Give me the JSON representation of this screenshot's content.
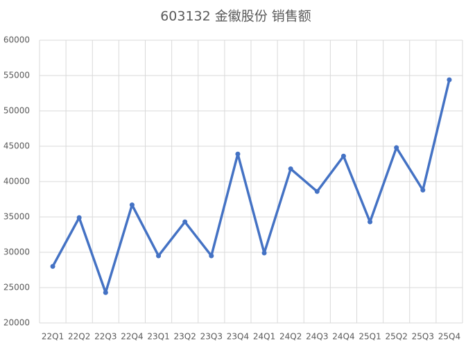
{
  "chart_data": {
    "type": "line",
    "title": "603132 金徽股份 销售额",
    "categories": [
      "22Q1",
      "22Q2",
      "22Q3",
      "22Q4",
      "23Q1",
      "23Q2",
      "23Q3",
      "23Q4",
      "24Q1",
      "24Q2",
      "24Q3",
      "24Q4",
      "25Q1",
      "25Q2",
      "25Q3",
      "25Q4"
    ],
    "series": [
      {
        "name": "销售额",
        "color": "#4472c4",
        "values": [
          28000,
          34900,
          24300,
          36700,
          29500,
          34300,
          29500,
          43900,
          29900,
          41800,
          38600,
          43600,
          34300,
          44800,
          38800,
          54400
        ]
      }
    ],
    "ylim": [
      20000,
      60000
    ],
    "yticks": [
      20000,
      25000,
      30000,
      35000,
      40000,
      45000,
      50000,
      55000,
      60000
    ],
    "grid": true
  }
}
